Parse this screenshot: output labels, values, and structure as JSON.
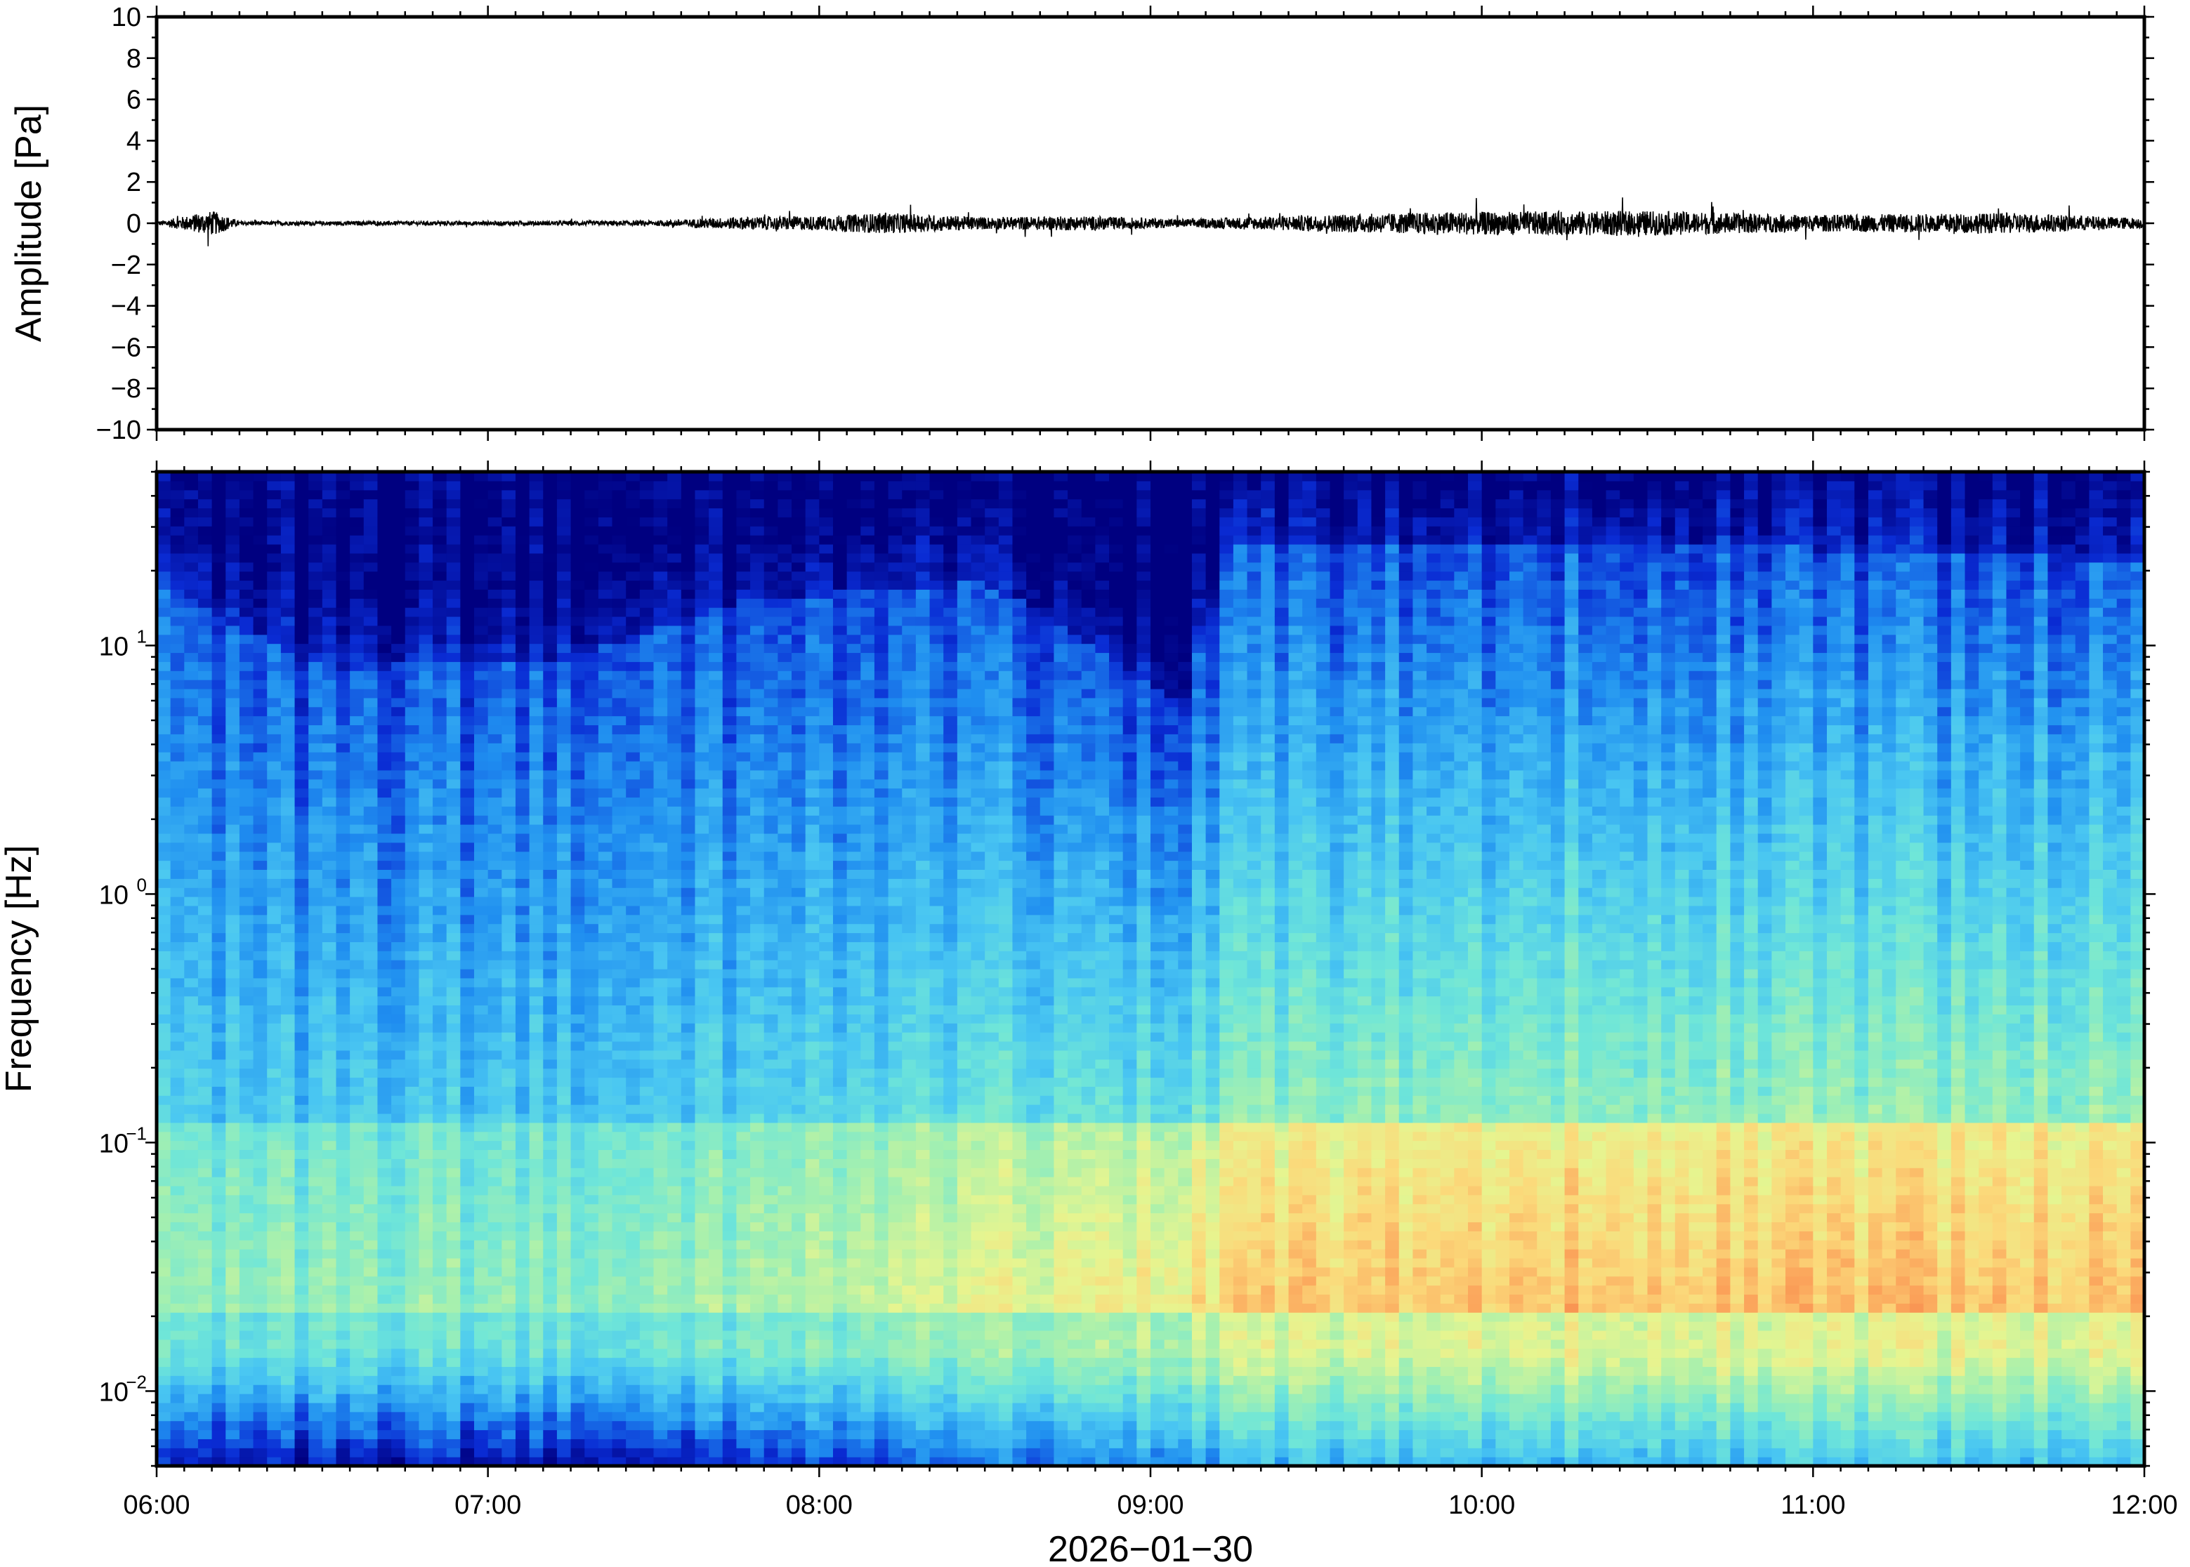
{
  "chart_data": [
    {
      "type": "line",
      "panel": "waveform",
      "ylabel": "Amplitude [Pa]",
      "ylim": [
        -10,
        10
      ],
      "yticks": [
        10,
        8,
        6,
        4,
        2,
        0,
        -2,
        -4,
        -6,
        -8,
        -10
      ],
      "ytick_labels": [
        "10",
        "8",
        "6",
        "4",
        "2",
        "0",
        "−2",
        "−4",
        "−6",
        "−8",
        "−10"
      ],
      "x_range_hours": [
        6,
        12
      ],
      "line_color": "#000000",
      "envelope": [
        {
          "t": 6.0,
          "amp": 0.08
        },
        {
          "t": 6.17,
          "amp": 0.6
        },
        {
          "t": 6.25,
          "amp": 0.1
        },
        {
          "t": 7.0,
          "amp": 0.1
        },
        {
          "t": 7.5,
          "amp": 0.12
        },
        {
          "t": 7.75,
          "amp": 0.3
        },
        {
          "t": 8.0,
          "amp": 0.35
        },
        {
          "t": 8.2,
          "amp": 0.5
        },
        {
          "t": 8.5,
          "amp": 0.3
        },
        {
          "t": 8.8,
          "amp": 0.35
        },
        {
          "t": 9.1,
          "amp": 0.2
        },
        {
          "t": 9.5,
          "amp": 0.4
        },
        {
          "t": 9.9,
          "amp": 0.55
        },
        {
          "t": 10.5,
          "amp": 0.6
        },
        {
          "t": 11.0,
          "amp": 0.4
        },
        {
          "t": 11.6,
          "amp": 0.5
        },
        {
          "t": 12.0,
          "amp": 0.25
        }
      ]
    },
    {
      "type": "heatmap",
      "panel": "spectrogram",
      "ylabel": "Frequency [Hz]",
      "y_scale": "log",
      "ylim": [
        0.005,
        50
      ],
      "yticks": [
        0.01,
        0.1,
        1,
        10
      ],
      "ytick_labels": [
        {
          "base": "10",
          "exp": "−2"
        },
        {
          "base": "10",
          "exp": "−1"
        },
        {
          "base": "10",
          "exp": "0"
        },
        {
          "base": "10",
          "exp": "1"
        }
      ],
      "xlabel": "2026−01−30",
      "xticks": [
        "06:00",
        "07:00",
        "08:00",
        "09:00",
        "10:00",
        "11:00",
        "12:00"
      ],
      "colormap": [
        "#000080",
        "#0a2cd4",
        "#1f8ef0",
        "#49c6f2",
        "#6fe6d8",
        "#a6f0ae",
        "#e6f590",
        "#fbd97a",
        "#fba25a",
        "#f26b3e"
      ],
      "noise_ceiling_hz": [
        {
          "t": 6.0,
          "f": 18
        },
        {
          "t": 6.5,
          "f": 8
        },
        {
          "t": 7.25,
          "f": 9
        },
        {
          "t": 7.75,
          "f": 15
        },
        {
          "t": 8.5,
          "f": 18
        },
        {
          "t": 9.1,
          "f": 6
        },
        {
          "t": 9.25,
          "f": 25
        },
        {
          "t": 10.5,
          "f": 26
        },
        {
          "t": 12.0,
          "f": 22
        }
      ],
      "peak_band_hz": [
        0.02,
        0.12
      ]
    }
  ]
}
